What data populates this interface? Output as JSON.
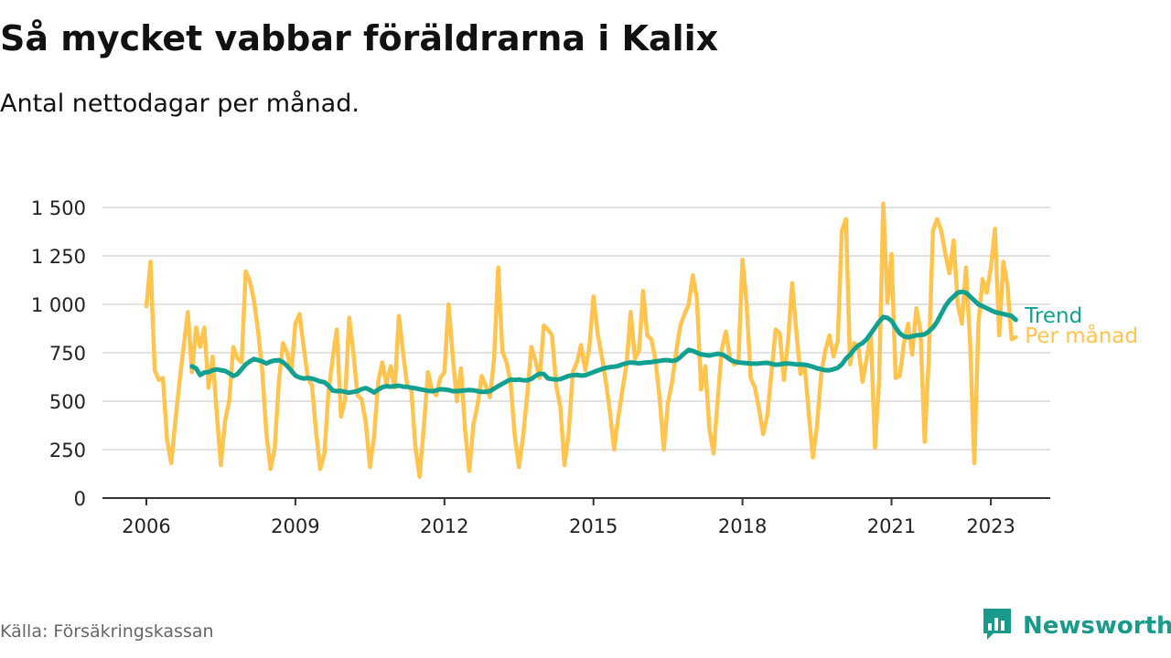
{
  "header": {
    "title": "Så mycket vabbar föräldrarna i Kalix",
    "subtitle": "Antal nettodagar per månad."
  },
  "footer": {
    "source": "Källa: Försäkringskassan",
    "brand": "Newsworthy",
    "brand_icon": "bar-chart-speech-bubble-icon",
    "brand_color": "#1a9a8a"
  },
  "chart_data": {
    "type": "line",
    "title": "",
    "xlabel": "",
    "ylabel": "",
    "ylim": [
      0,
      1500
    ],
    "y_ticks": [
      0,
      250,
      500,
      750,
      1000,
      1250,
      1500
    ],
    "y_tick_labels": [
      "0",
      "250",
      "500",
      "750",
      "1 000",
      "1 250",
      "1 500"
    ],
    "x_ticks": [
      "2006",
      "2009",
      "2012",
      "2015",
      "2018",
      "2021",
      "2023"
    ],
    "grid": "horizontal",
    "legend": "inline labels at line ends, right",
    "x_start": "2006-01",
    "series": [
      {
        "name": "Per månad",
        "color": "#ffc44d",
        "start": "2006-01",
        "values": [
          990,
          1220,
          660,
          610,
          620,
          300,
          180,
          400,
          600,
          780,
          960,
          650,
          880,
          780,
          880,
          570,
          730,
          440,
          170,
          400,
          500,
          780,
          720,
          700,
          1170,
          1120,
          1020,
          860,
          650,
          330,
          150,
          260,
          600,
          800,
          750,
          650,
          900,
          950,
          780,
          620,
          580,
          340,
          150,
          230,
          550,
          720,
          870,
          420,
          510,
          930,
          750,
          530,
          510,
          390,
          160,
          320,
          600,
          700,
          590,
          680,
          570,
          940,
          750,
          580,
          560,
          260,
          110,
          360,
          650,
          560,
          530,
          620,
          650,
          1000,
          730,
          500,
          670,
          350,
          140,
          380,
          480,
          630,
          580,
          520,
          720,
          1190,
          760,
          700,
          590,
          320,
          160,
          320,
          530,
          780,
          710,
          620,
          890,
          870,
          840,
          580,
          470,
          170,
          330,
          650,
          700,
          790,
          660,
          780,
          1040,
          850,
          730,
          600,
          440,
          250,
          420,
          560,
          690,
          960,
          720,
          760,
          1070,
          840,
          820,
          710,
          510,
          250,
          490,
          600,
          760,
          890,
          950,
          1000,
          1150,
          1030,
          560,
          680,
          360,
          230,
          500,
          770,
          860,
          720,
          690,
          700,
          1230,
          1000,
          620,
          570,
          460,
          330,
          430,
          650,
          870,
          850,
          610,
          810,
          1110,
          860,
          640,
          690,
          440,
          210,
          370,
          640,
          760,
          840,
          730,
          810,
          1380,
          1440,
          690,
          800,
          780,
          600,
          720,
          850,
          260,
          600,
          1520,
          1010,
          1260,
          620,
          630,
          800,
          900,
          740,
          980,
          860,
          290,
          720,
          1380,
          1440,
          1380,
          1260,
          1160,
          1330,
          1000,
          900,
          1190,
          790,
          180,
          900,
          1130,
          1060,
          1190,
          1390,
          840,
          1220,
          1100,
          820,
          830
        ]
      },
      {
        "name": "Trend",
        "color": "#12a090",
        "start": "2006-12",
        "values": [
          680,
          670,
          635,
          648,
          650,
          660,
          664,
          660,
          656,
          645,
          630,
          640,
          665,
          690,
          705,
          718,
          712,
          705,
          695,
          705,
          710,
          712,
          702,
          682,
          658,
          632,
          622,
          617,
          620,
          617,
          610,
          602,
          598,
          580,
          555,
          552,
          553,
          548,
          544,
          548,
          552,
          562,
          568,
          558,
          545,
          560,
          572,
          578,
          575,
          578,
          580,
          575,
          574,
          570,
          567,
          562,
          558,
          554,
          552,
          555,
          562,
          560,
          558,
          552,
          552,
          554,
          556,
          558,
          556,
          552,
          548,
          548,
          552,
          565,
          578,
          590,
          602,
          612,
          610,
          612,
          608,
          608,
          615,
          630,
          642,
          640,
          618,
          614,
          612,
          614,
          622,
          630,
          634,
          636,
          632,
          634,
          642,
          650,
          658,
          666,
          672,
          676,
          678,
          682,
          690,
          696,
          700,
          698,
          695,
          698,
          700,
          702,
          705,
          708,
          712,
          712,
          708,
          712,
          728,
          748,
          765,
          760,
          750,
          742,
          738,
          736,
          740,
          745,
          742,
          730,
          715,
          705,
          700,
          698,
          696,
          695,
          694,
          695,
          697,
          698,
          693,
          688,
          690,
          694,
          695,
          693,
          690,
          690,
          688,
          684,
          678,
          670,
          665,
          660,
          660,
          665,
          672,
          690,
          720,
          740,
          768,
          788,
          800,
          820,
          850,
          880,
          910,
          935,
          930,
          915,
          880,
          850,
          835,
          830,
          835,
          840,
          842,
          845,
          860,
          880,
          910,
          950,
          990,
          1020,
          1040,
          1060,
          1065,
          1060,
          1040,
          1020,
          1000,
          990,
          980,
          970,
          960,
          955,
          950,
          945,
          940,
          920
        ]
      }
    ]
  }
}
